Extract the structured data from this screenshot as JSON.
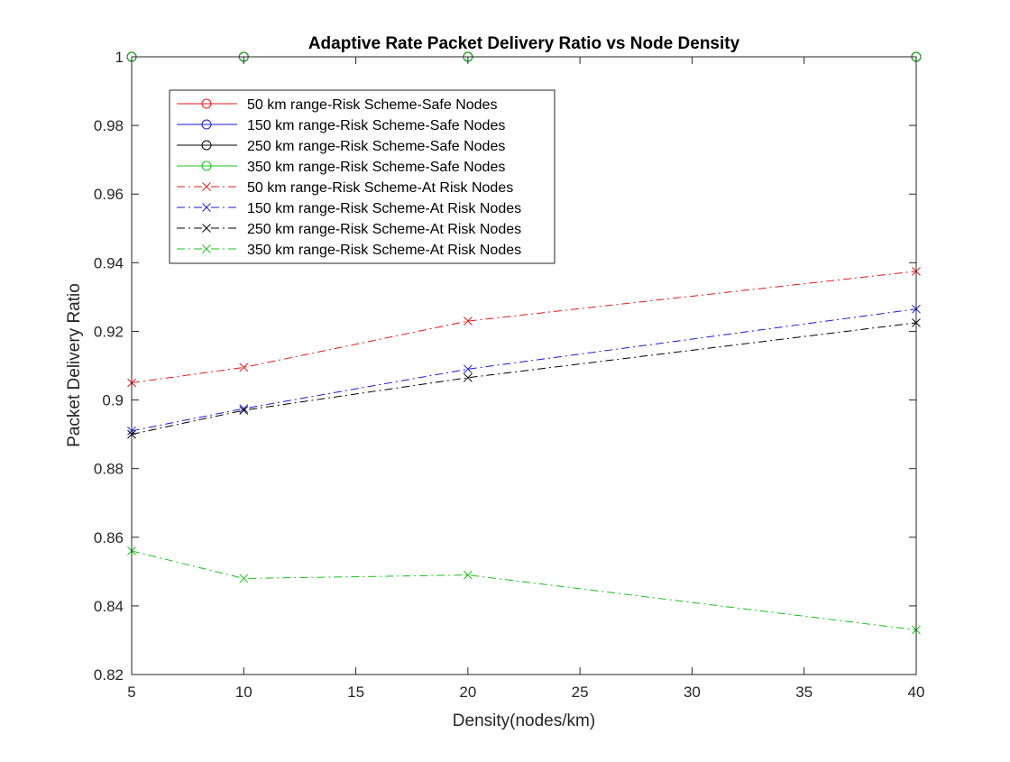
{
  "chart_data": {
    "type": "line",
    "title": "Adaptive Rate Packet Delivery Ratio vs Node Density",
    "xlabel": "Density(nodes/km)",
    "ylabel": "Packet Delivery Ratio",
    "xlim": [
      5,
      40
    ],
    "ylim": [
      0.82,
      1.0
    ],
    "xticks": [
      5,
      10,
      15,
      20,
      25,
      30,
      35,
      40
    ],
    "xtick_labels": [
      "5",
      "10",
      "15",
      "20",
      "25",
      "30",
      "35",
      "40"
    ],
    "yticks": [
      0.82,
      0.84,
      0.86,
      0.88,
      0.9,
      0.92,
      0.94,
      0.96,
      0.98,
      1.0
    ],
    "ytick_labels": [
      "0.82",
      "0.84",
      "0.86",
      "0.88",
      "0.9",
      "0.92",
      "0.94",
      "0.96",
      "0.98",
      "1"
    ],
    "grid": false,
    "legend_position": "top-left",
    "x": [
      5,
      10,
      20,
      40
    ],
    "series": [
      {
        "name": "50 km range-Risk Scheme-Safe Nodes",
        "color": "#e41a1a",
        "marker": "circle",
        "dash": "solid",
        "values": [
          1.0,
          1.0,
          1.0,
          1.0
        ]
      },
      {
        "name": "150 km range-Risk Scheme-Safe Nodes",
        "color": "#1a1ad6",
        "marker": "circle",
        "dash": "solid",
        "values": [
          1.0,
          1.0,
          1.0,
          1.0
        ]
      },
      {
        "name": "250 km range-Risk Scheme-Safe Nodes",
        "color": "#000000",
        "marker": "circle",
        "dash": "solid",
        "values": [
          1.0,
          1.0,
          1.0,
          1.0
        ]
      },
      {
        "name": "350 km range-Risk Scheme-Safe Nodes",
        "color": "#19c219",
        "marker": "circle",
        "dash": "solid",
        "values": [
          1.0,
          1.0,
          1.0,
          1.0
        ]
      },
      {
        "name": "50 km range-Risk Scheme-At Risk Nodes",
        "color": "#e41a1a",
        "marker": "x",
        "dash": "dashdot",
        "values": [
          0.905,
          0.9095,
          0.923,
          0.9375
        ]
      },
      {
        "name": "150 km range-Risk Scheme-At Risk Nodes",
        "color": "#1a1ad6",
        "marker": "x",
        "dash": "dashdot",
        "values": [
          0.891,
          0.8975,
          0.909,
          0.9265
        ]
      },
      {
        "name": "250 km range-Risk Scheme-At Risk Nodes",
        "color": "#000000",
        "marker": "x",
        "dash": "dashdot",
        "values": [
          0.89,
          0.897,
          0.9065,
          0.9225
        ]
      },
      {
        "name": "350 km range-Risk Scheme-At Risk Nodes",
        "color": "#19c219",
        "marker": "x",
        "dash": "dashdot",
        "values": [
          0.856,
          0.848,
          0.849,
          0.833
        ]
      }
    ]
  }
}
